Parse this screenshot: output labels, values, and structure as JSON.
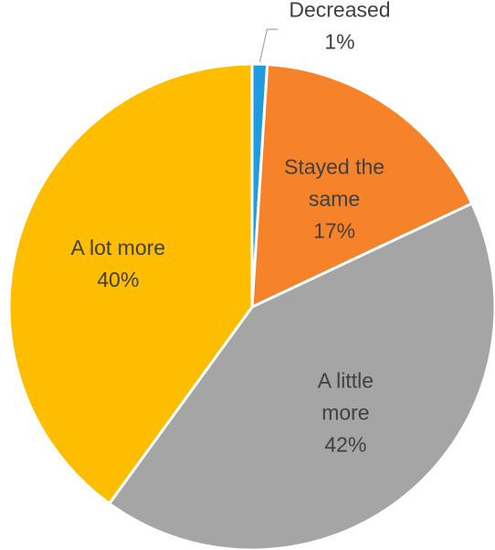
{
  "chart_data": {
    "type": "pie",
    "title": "",
    "start_angle_deg": 0,
    "direction": "clockwise",
    "slices": [
      {
        "label": "Decreased",
        "value": 1,
        "value_label": "1%",
        "color": "#1f9be0"
      },
      {
        "label": "Stayed the same",
        "value": 17,
        "value_label": "17%",
        "color": "#f6822a"
      },
      {
        "label": "A little more",
        "value": 42,
        "value_label": "42%",
        "color": "#a5a5a5"
      },
      {
        "label": "A lot more",
        "value": 40,
        "value_label": "40%",
        "color": "#ffbd00"
      }
    ],
    "label_lines": [
      [
        "Decreased",
        "1%"
      ],
      [
        "Stayed the",
        "same",
        "17%"
      ],
      [
        "A little",
        "more",
        "42%"
      ],
      [
        "A lot more",
        "40%"
      ]
    ],
    "legend": "none"
  }
}
